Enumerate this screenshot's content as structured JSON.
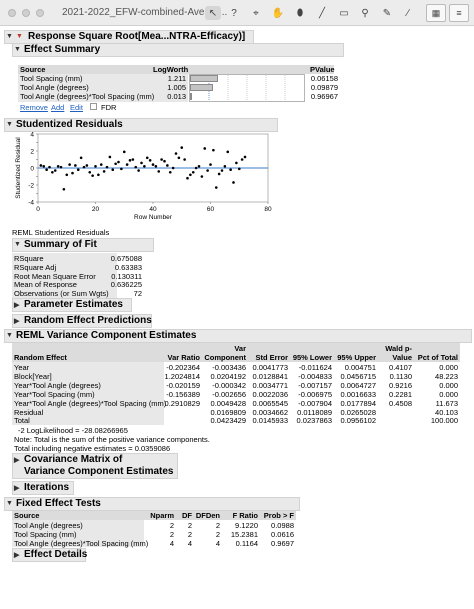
{
  "window": {
    "title": "2021-2022_EFW-combined-Averag..."
  },
  "toolbar": {
    "icons": [
      "pointer-icon",
      "help-icon",
      "crosshair-icon",
      "hand-icon",
      "lasso-icon",
      "brush-icon",
      "magnifier-icon",
      "pen-icon",
      "annotate-icon",
      "data-table-icon",
      "script-icon"
    ]
  },
  "report": {
    "title": "Response Square Root[Mea...NTRA-Efficacy)]",
    "effect_summary": {
      "title": "Effect Summary",
      "headers": {
        "source": "Source",
        "logworth": "LogWorth",
        "pvalue": "PValue"
      },
      "rows": [
        {
          "source": "Tool Spacing (mm)",
          "logworth": "1.211",
          "logworth_value": 1.211,
          "pvalue": "0.06158"
        },
        {
          "source": "Tool Angle (degrees)",
          "logworth": "1.005",
          "logworth_value": 1.005,
          "pvalue": "0.09879"
        },
        {
          "source": "Tool Angle (degrees)*Tool Spacing (mm)",
          "logworth": "0.013",
          "logworth_value": 0.013,
          "pvalue": "0.96967"
        }
      ],
      "actions": {
        "remove": "Remove",
        "add": "Add",
        "edit": "Edit",
        "fdr": "FDR"
      }
    },
    "studentized_residuals": {
      "title": "Studentized Residuals",
      "caption": "REML Studentized Residuals"
    },
    "summary_of_fit": {
      "title": "Summary of Fit",
      "rows": [
        {
          "label": "RSquare",
          "value": "0.675088"
        },
        {
          "label": "RSquare Adj",
          "value": "0.63383"
        },
        {
          "label": "Root Mean Square Error",
          "value": "0.130311"
        },
        {
          "label": "Mean of Response",
          "value": "0.636225"
        },
        {
          "label": "Observations (or Sum Wgts)",
          "value": "72"
        }
      ]
    },
    "parameter_estimates": {
      "title": "Parameter Estimates"
    },
    "random_effect_predictions": {
      "title": "Random Effect Predictions"
    },
    "reml": {
      "title": "REML Variance Component Estimates",
      "headers": {
        "random_effect": "Random Effect",
        "var_ratio": "Var Ratio",
        "var_component_top": "Var",
        "var_component": "Component",
        "std_error": "Std Error",
        "lower": "95% Lower",
        "upper": "95% Upper",
        "wald_top": "Wald p-",
        "wald": "Value",
        "pct": "Pct of Total"
      },
      "rows": [
        {
          "effect": "Year",
          "ratio": "-0.202364",
          "comp": "-0.003436",
          "se": "0.0041773",
          "lower": "-0.011624",
          "upper": "0.004751",
          "wald": "0.4107",
          "pct": "0.000"
        },
        {
          "effect": "Block[Year]",
          "ratio": "1.2024814",
          "comp": "0.0204192",
          "se": "0.0128841",
          "lower": "-0.004833",
          "upper": "0.0456715",
          "wald": "0.1130",
          "pct": "48.223"
        },
        {
          "effect": "Year*Tool Angle (degrees)",
          "ratio": "-0.020159",
          "comp": "-0.000342",
          "se": "0.0034771",
          "lower": "-0.007157",
          "upper": "0.0064727",
          "wald": "0.9216",
          "pct": "0.000"
        },
        {
          "effect": "Year*Tool Spacing (mm)",
          "ratio": "-0.156389",
          "comp": "-0.002656",
          "se": "0.0022036",
          "lower": "-0.006975",
          "upper": "0.0016633",
          "wald": "0.2281",
          "pct": "0.000"
        },
        {
          "effect": "Year*Tool Angle (degrees)*Tool Spacing (mm)",
          "ratio": "0.2910829",
          "comp": "0.0049428",
          "se": "0.0065545",
          "lower": "-0.007904",
          "upper": "0.0177894",
          "wald": "0.4508",
          "pct": "11.673"
        },
        {
          "effect": "Residual",
          "ratio": "",
          "comp": "0.0169809",
          "se": "0.0034662",
          "lower": "0.0118089",
          "upper": "0.0265028",
          "wald": "",
          "pct": "40.103"
        },
        {
          "effect": "Total",
          "ratio": "",
          "comp": "0.0423429",
          "se": "0.0145933",
          "lower": "0.0237863",
          "upper": "0.0956102",
          "wald": "",
          "pct": "100.000"
        }
      ],
      "loglik": "-2 LogLikelihood =   -28.08266965",
      "note1": "Note: Total is the sum of the positive variance components.",
      "note2": "Total including negative estimates =  0.0359086"
    },
    "covariance_matrix": {
      "title_line1": "Covariance Matrix of",
      "title_line2": "Variance Component Estimates"
    },
    "iterations": {
      "title": "Iterations"
    },
    "fixed_effect_tests": {
      "title": "Fixed Effect Tests",
      "headers": {
        "source": "Source",
        "nparm": "Nparm",
        "df": "DF",
        "dfden": "DFDen",
        "fratio": "F Ratio",
        "prob": "Prob > F"
      },
      "rows": [
        {
          "source": "Tool Angle (degrees)",
          "nparm": "2",
          "df": "2",
          "dfden": "2",
          "fratio": "9.1220",
          "prob": "0.0988"
        },
        {
          "source": "Tool Spacing (mm)",
          "nparm": "2",
          "df": "2",
          "dfden": "2",
          "fratio": "15.2381",
          "prob": "0.0616"
        },
        {
          "source": "Tool Angle (degrees)*Tool Spacing (mm)",
          "nparm": "4",
          "df": "4",
          "dfden": "4",
          "fratio": "0.1164",
          "prob": "0.9697"
        }
      ]
    },
    "effect_details": {
      "title": "Effect Details"
    }
  },
  "chart_data": {
    "type": "scatter",
    "title": "",
    "xlabel": "Row Number",
    "ylabel": "Studentized Residual",
    "xlim": [
      0,
      80
    ],
    "ylim": [
      -4,
      4
    ],
    "xticks": [
      0,
      20,
      40,
      60,
      80
    ],
    "yticks": [
      -4,
      -3,
      -2,
      -1,
      0,
      1,
      2,
      3,
      4
    ],
    "reference_line": 0,
    "reference_color": "#3a7ec8",
    "point_color": "#000000",
    "x": [
      1,
      2,
      3,
      4,
      5,
      6,
      7,
      8,
      9,
      10,
      11,
      12,
      13,
      14,
      15,
      16,
      17,
      18,
      19,
      20,
      21,
      22,
      23,
      24,
      25,
      26,
      27,
      28,
      29,
      30,
      31,
      32,
      33,
      34,
      35,
      36,
      37,
      38,
      39,
      40,
      41,
      42,
      43,
      44,
      45,
      46,
      47,
      48,
      49,
      50,
      51,
      52,
      53,
      54,
      55,
      56,
      57,
      58,
      59,
      60,
      61,
      62,
      63,
      64,
      65,
      66,
      67,
      68,
      69,
      70,
      71,
      72
    ],
    "y": [
      0.3,
      0.2,
      -0.2,
      0.1,
      -0.5,
      -0.3,
      0.2,
      0.1,
      -2.5,
      -0.8,
      0.4,
      -0.6,
      0.3,
      -0.2,
      1.2,
      0.1,
      0.3,
      -0.5,
      -0.9,
      0.2,
      -0.8,
      0.4,
      -0.4,
      0.1,
      1.3,
      -0.2,
      0.5,
      0.7,
      -0.1,
      1.9,
      0.4,
      0.9,
      1.0,
      0.1,
      -0.3,
      0.6,
      0.2,
      1.2,
      0.9,
      0.4,
      0.2,
      -0.4,
      1.0,
      0.8,
      0.3,
      -0.5,
      0.0,
      1.7,
      1.2,
      2.4,
      1.0,
      -1.2,
      -0.8,
      -0.5,
      0.0,
      0.2,
      -1.0,
      2.3,
      -0.3,
      0.4,
      2.1,
      -2.3,
      -0.7,
      -0.3,
      0.2,
      1.9,
      -0.2,
      -1.7,
      0.6,
      -0.1,
      1.0,
      1.3
    ]
  }
}
